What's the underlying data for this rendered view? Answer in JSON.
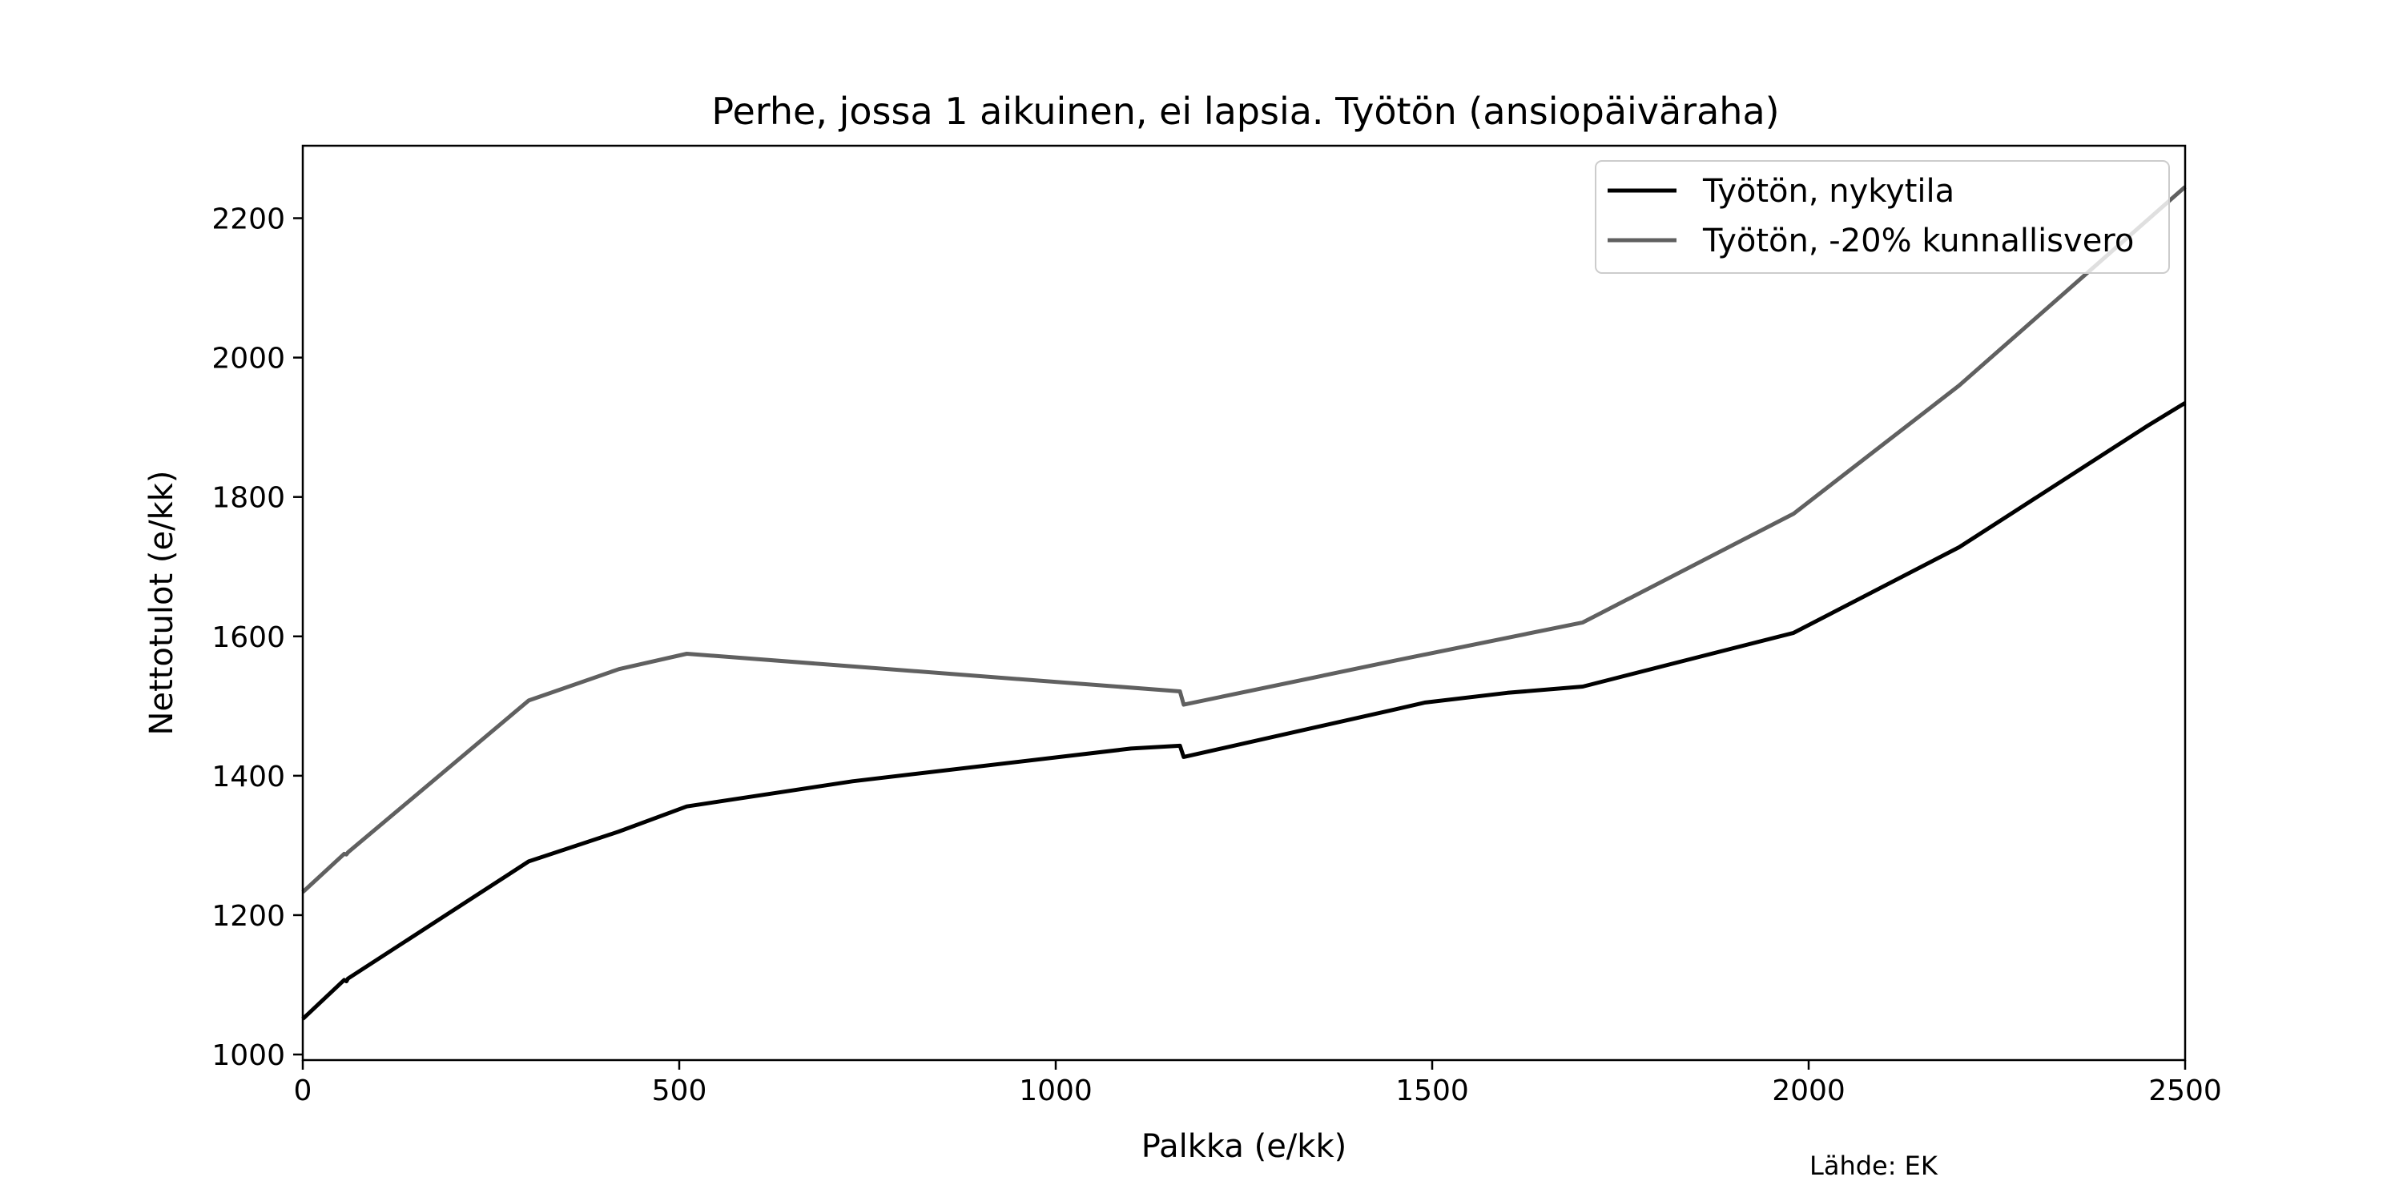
{
  "chart_data": {
    "type": "line",
    "title": "Perhe, jossa 1 aikuinen, ei lapsia. Työtön (ansiopäiväraha)",
    "xlabel": "Palkka (e/kk)",
    "ylabel": "Nettotulot (e/kk)",
    "xlim": [
      0,
      2500
    ],
    "ylim": [
      992,
      2304
    ],
    "xticks": [
      0,
      500,
      1000,
      1500,
      2000,
      2500
    ],
    "yticks": [
      1000,
      1200,
      1400,
      1600,
      1800,
      2000,
      2200
    ],
    "grid": false,
    "legend_position": "top-right",
    "source": "Lähde: EK",
    "series": [
      {
        "name": "Työtön, nykytila",
        "color": "#000000",
        "points": [
          [
            0,
            1051
          ],
          [
            55,
            1107
          ],
          [
            58,
            1105
          ],
          [
            60,
            1109
          ],
          [
            300,
            1277
          ],
          [
            420,
            1320
          ],
          [
            510,
            1356
          ],
          [
            730,
            1392
          ],
          [
            1100,
            1439
          ],
          [
            1165,
            1443
          ],
          [
            1170,
            1427
          ],
          [
            1450,
            1495
          ],
          [
            1490,
            1505
          ],
          [
            1600,
            1519
          ],
          [
            1700,
            1528
          ],
          [
            1980,
            1605
          ],
          [
            2200,
            1728
          ],
          [
            2450,
            1902
          ],
          [
            2500,
            1935
          ]
        ]
      },
      {
        "name": "Työtön, -20% kunnallisvero",
        "color": "#606060",
        "points": [
          [
            0,
            1233
          ],
          [
            55,
            1288
          ],
          [
            58,
            1287
          ],
          [
            60,
            1290
          ],
          [
            300,
            1508
          ],
          [
            420,
            1553
          ],
          [
            510,
            1575
          ],
          [
            1165,
            1521
          ],
          [
            1170,
            1502
          ],
          [
            1450,
            1565
          ],
          [
            1700,
            1620
          ],
          [
            1980,
            1776
          ],
          [
            2200,
            1960
          ],
          [
            2500,
            2245
          ]
        ]
      }
    ]
  }
}
